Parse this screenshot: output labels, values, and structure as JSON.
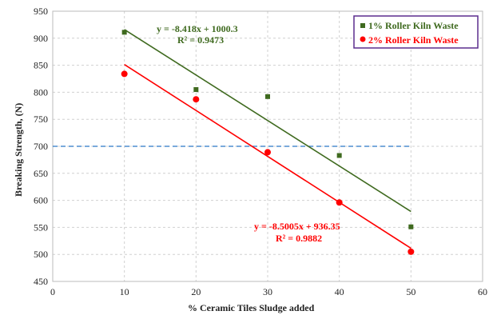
{
  "chart_data": {
    "type": "scatter",
    "xlabel": "% Ceramic Tiles Sludge added",
    "ylabel": "Breaking Strength, (N)",
    "xlim": [
      0,
      60
    ],
    "ylim": [
      450,
      950
    ],
    "xticks": [
      0,
      10,
      20,
      30,
      40,
      50,
      60
    ],
    "yticks": [
      450,
      500,
      550,
      600,
      650,
      700,
      750,
      800,
      850,
      900,
      950
    ],
    "grid": true,
    "legend_position": "top-right",
    "series": [
      {
        "name": "1% Roller Kiln Waste",
        "color": "#3f6a1f",
        "marker": "square",
        "x": [
          10,
          20,
          30,
          40,
          50
        ],
        "y": [
          911,
          805,
          792,
          683,
          551
        ],
        "trendline": {
          "slope": -8.418,
          "intercept": 1000.3,
          "equation": "y = -8.418x + 1000.3",
          "r2": "R² = 0.9473"
        }
      },
      {
        "name": "2% Roller Kiln Waste",
        "color": "#ff0000",
        "marker": "circle",
        "x": [
          10,
          20,
          30,
          40,
          50
        ],
        "y": [
          834,
          787,
          689,
          596,
          505
        ],
        "trendline": {
          "slope": -8.5005,
          "intercept": 936.35,
          "equation": "y = -8.5005x + 936.35",
          "r2": "R² = 0.9882"
        }
      }
    ],
    "reference_line": {
      "y": 700,
      "color": "#2a78c8",
      "style": "dashed"
    }
  }
}
